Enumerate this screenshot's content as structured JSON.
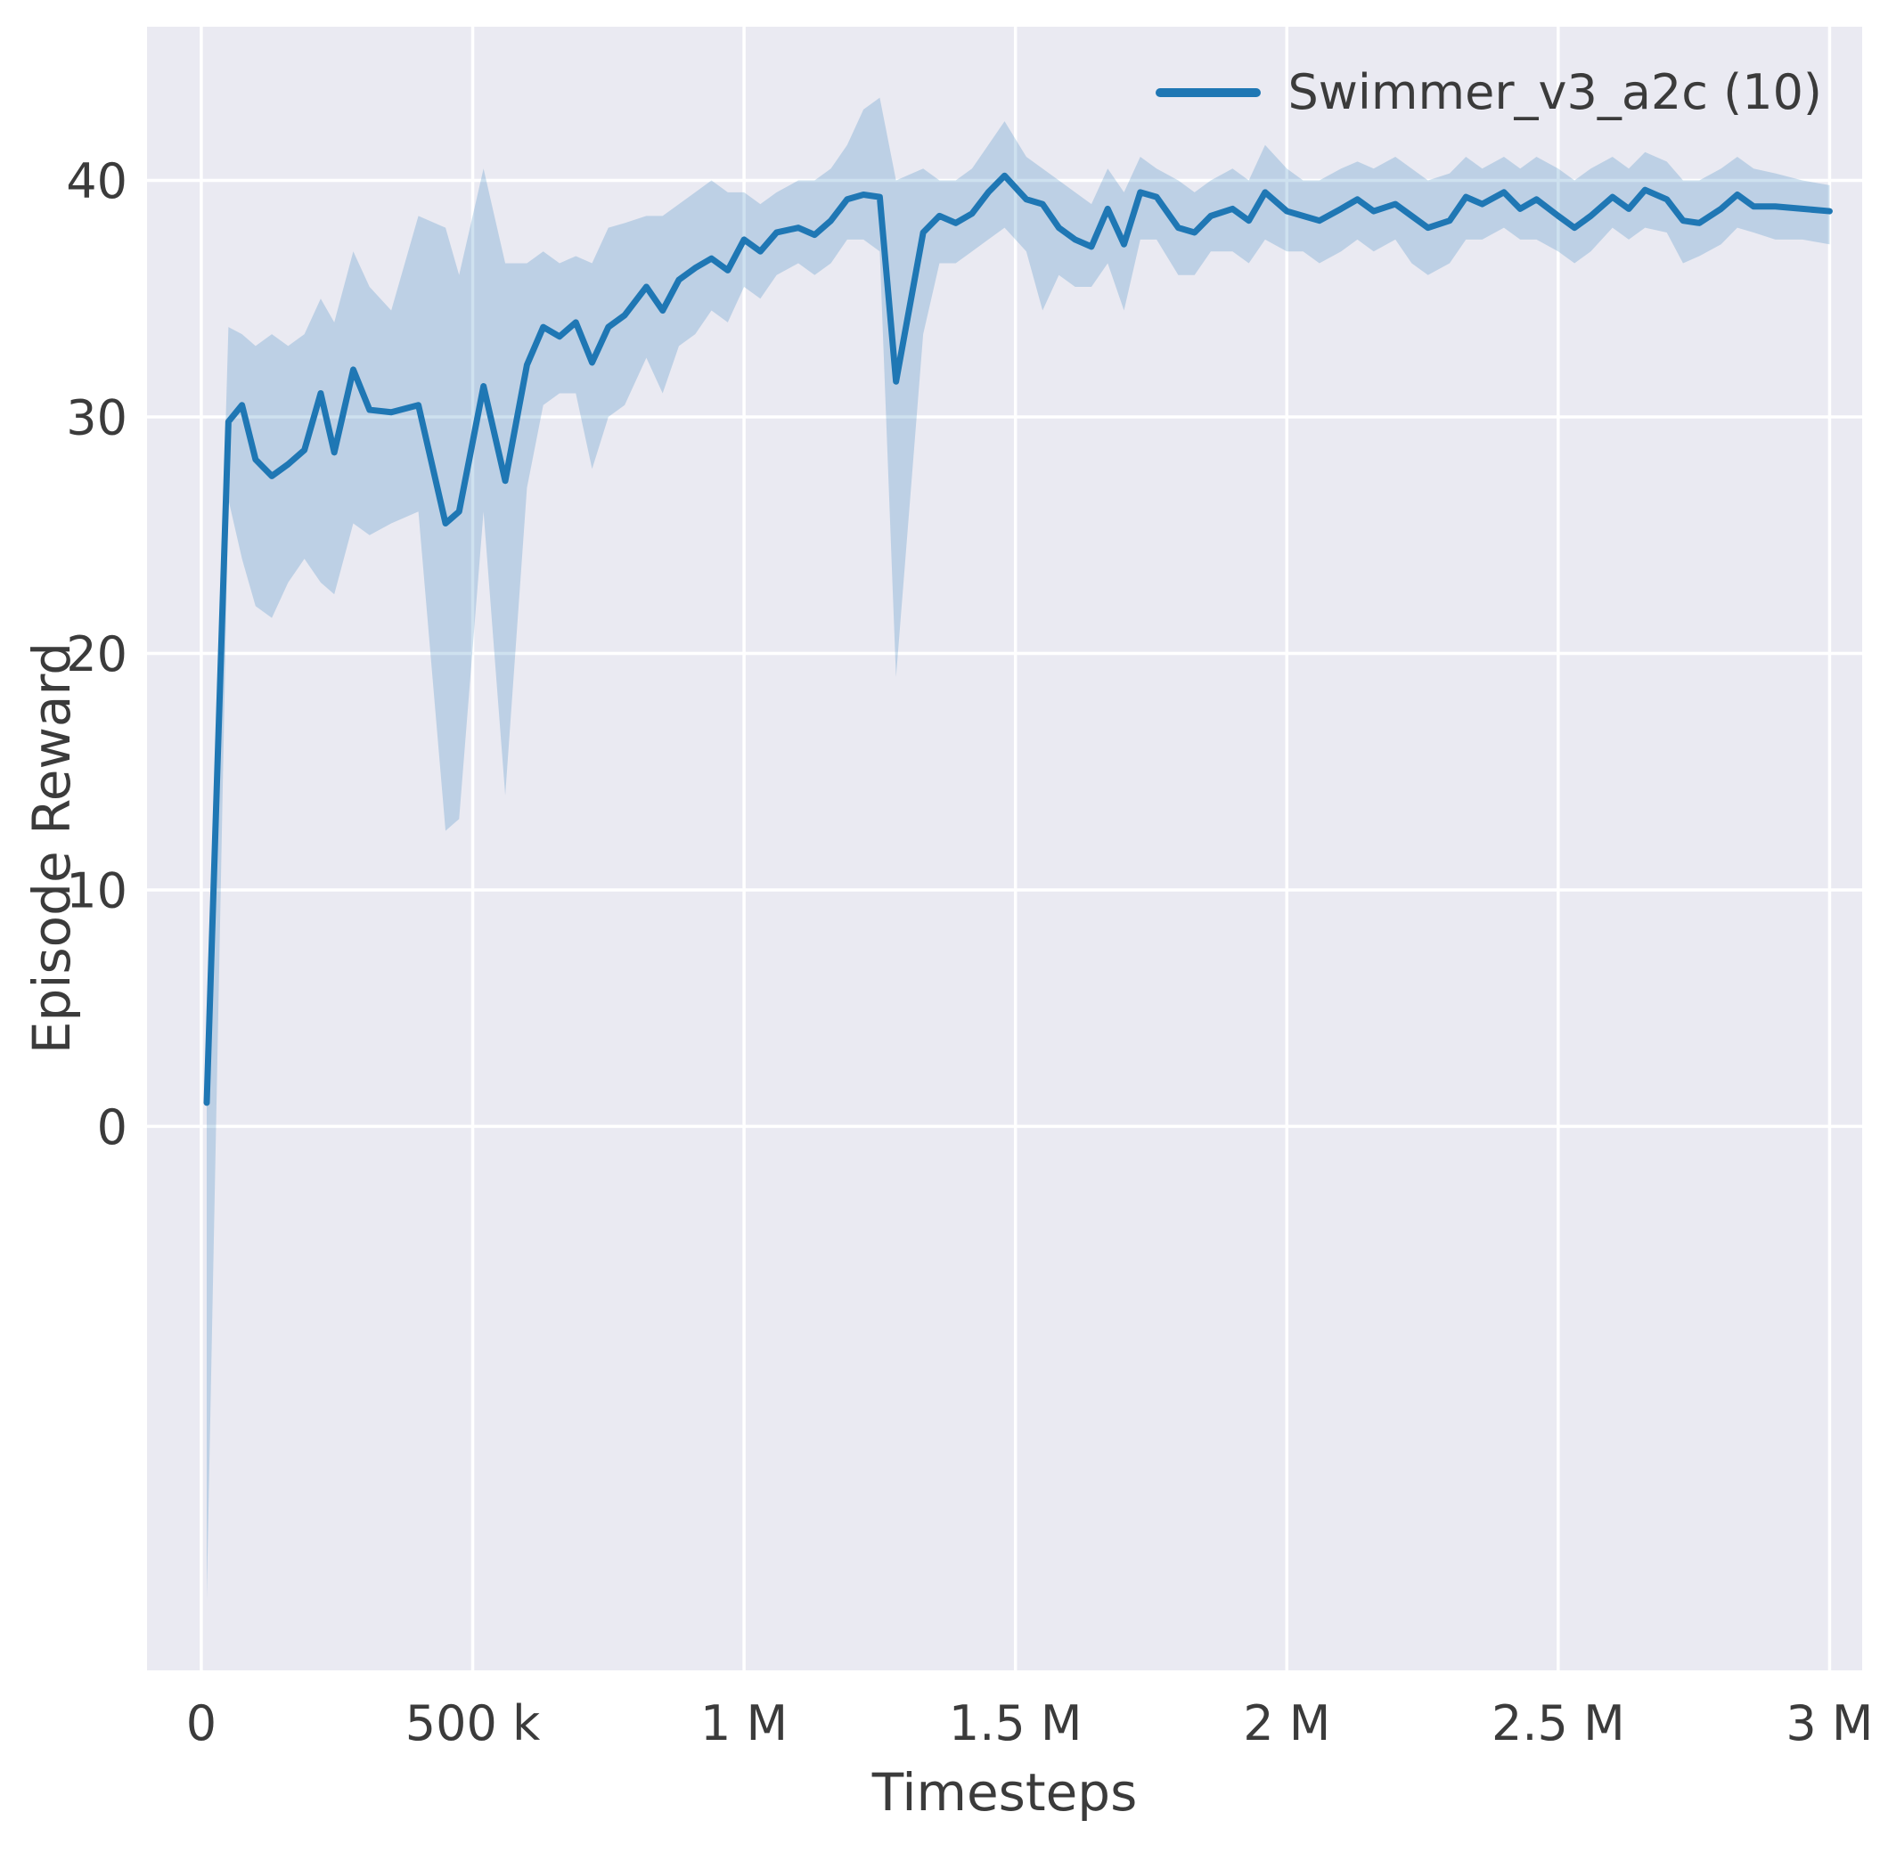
{
  "chart_data": {
    "type": "line",
    "title": "",
    "xlabel": "Timesteps",
    "ylabel": "Episode Reward",
    "legend_position": "upper right",
    "grid": true,
    "xlim": [
      -100000,
      3060000
    ],
    "ylim": [
      -23,
      46.5
    ],
    "x_ticks": [
      0,
      500000,
      1000000,
      1500000,
      2000000,
      2500000,
      3000000
    ],
    "x_tick_labels": [
      "0",
      "500 k",
      "1 M",
      "1.5 M",
      "2 M",
      "2.5 M",
      "3 M"
    ],
    "y_ticks": [
      0,
      10,
      20,
      30,
      40
    ],
    "y_tick_labels": [
      "0",
      "10",
      "20",
      "30",
      "40"
    ],
    "colors": {
      "line": "#1f77b4",
      "band": "#1f77b4",
      "band_opacity": 0.22,
      "plot_background": "#eaeaf2",
      "grid": "#ffffff",
      "text": "#3b3b3b"
    },
    "series": [
      {
        "name": "Swimmer_v3_a2c (10)",
        "x": [
          10000,
          50000,
          75000,
          100000,
          130000,
          160000,
          190000,
          220000,
          245000,
          280000,
          310000,
          350000,
          400000,
          450000,
          475000,
          520000,
          560000,
          600000,
          630000,
          660000,
          690000,
          720000,
          750000,
          780000,
          820000,
          850000,
          880000,
          910000,
          940000,
          970000,
          1000000,
          1030000,
          1060000,
          1100000,
          1130000,
          1160000,
          1190000,
          1220000,
          1250000,
          1280000,
          1330000,
          1360000,
          1390000,
          1420000,
          1450000,
          1480000,
          1520000,
          1550000,
          1580000,
          1610000,
          1640000,
          1670000,
          1700000,
          1730000,
          1760000,
          1800000,
          1830000,
          1860000,
          1900000,
          1930000,
          1960000,
          2000000,
          2030000,
          2060000,
          2100000,
          2130000,
          2160000,
          2200000,
          2230000,
          2260000,
          2300000,
          2330000,
          2360000,
          2400000,
          2430000,
          2460000,
          2500000,
          2530000,
          2560000,
          2600000,
          2630000,
          2660000,
          2700000,
          2730000,
          2760000,
          2800000,
          2830000,
          2860000,
          2900000,
          2950000,
          3000000
        ],
        "mean": [
          1.0,
          29.8,
          30.5,
          28.2,
          27.5,
          28.0,
          28.6,
          31.0,
          28.5,
          32.0,
          30.3,
          30.2,
          30.5,
          25.5,
          26.0,
          31.3,
          27.3,
          32.2,
          33.8,
          33.4,
          34.0,
          32.3,
          33.8,
          34.3,
          35.5,
          34.5,
          35.8,
          36.3,
          36.7,
          36.2,
          37.5,
          37.0,
          37.8,
          38.0,
          37.7,
          38.3,
          39.2,
          39.4,
          39.3,
          31.5,
          37.8,
          38.5,
          38.2,
          38.6,
          39.5,
          40.2,
          39.2,
          39.0,
          38.0,
          37.5,
          37.2,
          38.8,
          37.3,
          39.5,
          39.3,
          38.0,
          37.8,
          38.5,
          38.8,
          38.3,
          39.5,
          38.7,
          38.5,
          38.3,
          38.8,
          39.2,
          38.7,
          39.0,
          38.5,
          38.0,
          38.3,
          39.3,
          39.0,
          39.5,
          38.8,
          39.2,
          38.5,
          38.0,
          38.5,
          39.3,
          38.8,
          39.6,
          39.2,
          38.3,
          38.2,
          38.8,
          39.4,
          38.9,
          38.9,
          38.8,
          38.7
        ],
        "lower": [
          -20.0,
          26.5,
          24.0,
          22.0,
          21.5,
          23.0,
          24.0,
          23.0,
          22.5,
          25.5,
          25.0,
          25.5,
          26.0,
          12.5,
          13.0,
          26.0,
          14.0,
          27.0,
          30.5,
          31.0,
          31.0,
          27.8,
          30.0,
          30.5,
          32.5,
          31.0,
          33.0,
          33.5,
          34.5,
          34.0,
          35.5,
          35.0,
          36.0,
          36.5,
          36.0,
          36.5,
          37.5,
          37.5,
          37.0,
          19.0,
          33.5,
          36.5,
          36.5,
          37.0,
          37.5,
          38.0,
          37.0,
          34.5,
          36.0,
          35.5,
          35.5,
          36.5,
          34.5,
          37.5,
          37.5,
          36.0,
          36.0,
          37.0,
          37.0,
          36.5,
          37.5,
          37.0,
          37.0,
          36.5,
          37.0,
          37.5,
          37.0,
          37.5,
          36.5,
          36.0,
          36.5,
          37.5,
          37.5,
          38.0,
          37.5,
          37.5,
          37.0,
          36.5,
          37.0,
          38.0,
          37.5,
          38.0,
          37.8,
          36.5,
          36.8,
          37.3,
          38.0,
          37.8,
          37.5,
          37.5,
          37.3
        ],
        "upper": [
          2.0,
          33.8,
          33.5,
          33.0,
          33.5,
          33.0,
          33.5,
          35.0,
          34.0,
          37.0,
          35.5,
          34.5,
          38.5,
          38.0,
          36.0,
          40.5,
          36.5,
          36.5,
          37.0,
          36.5,
          36.8,
          36.5,
          38.0,
          38.2,
          38.5,
          38.5,
          39.0,
          39.5,
          40.0,
          39.5,
          39.5,
          39.0,
          39.5,
          40.0,
          40.0,
          40.5,
          41.5,
          43.0,
          43.5,
          40.0,
          40.5,
          40.0,
          40.0,
          40.5,
          41.5,
          42.5,
          41.0,
          40.5,
          40.0,
          39.5,
          39.0,
          40.5,
          39.5,
          41.0,
          40.5,
          40.0,
          39.5,
          40.0,
          40.5,
          40.0,
          41.5,
          40.5,
          40.0,
          40.0,
          40.5,
          40.8,
          40.5,
          41.0,
          40.5,
          40.0,
          40.3,
          41.0,
          40.5,
          41.0,
          40.5,
          41.0,
          40.5,
          40.0,
          40.5,
          41.0,
          40.5,
          41.2,
          40.8,
          40.0,
          40.0,
          40.5,
          41.0,
          40.5,
          40.3,
          40.0,
          39.8
        ]
      }
    ]
  }
}
